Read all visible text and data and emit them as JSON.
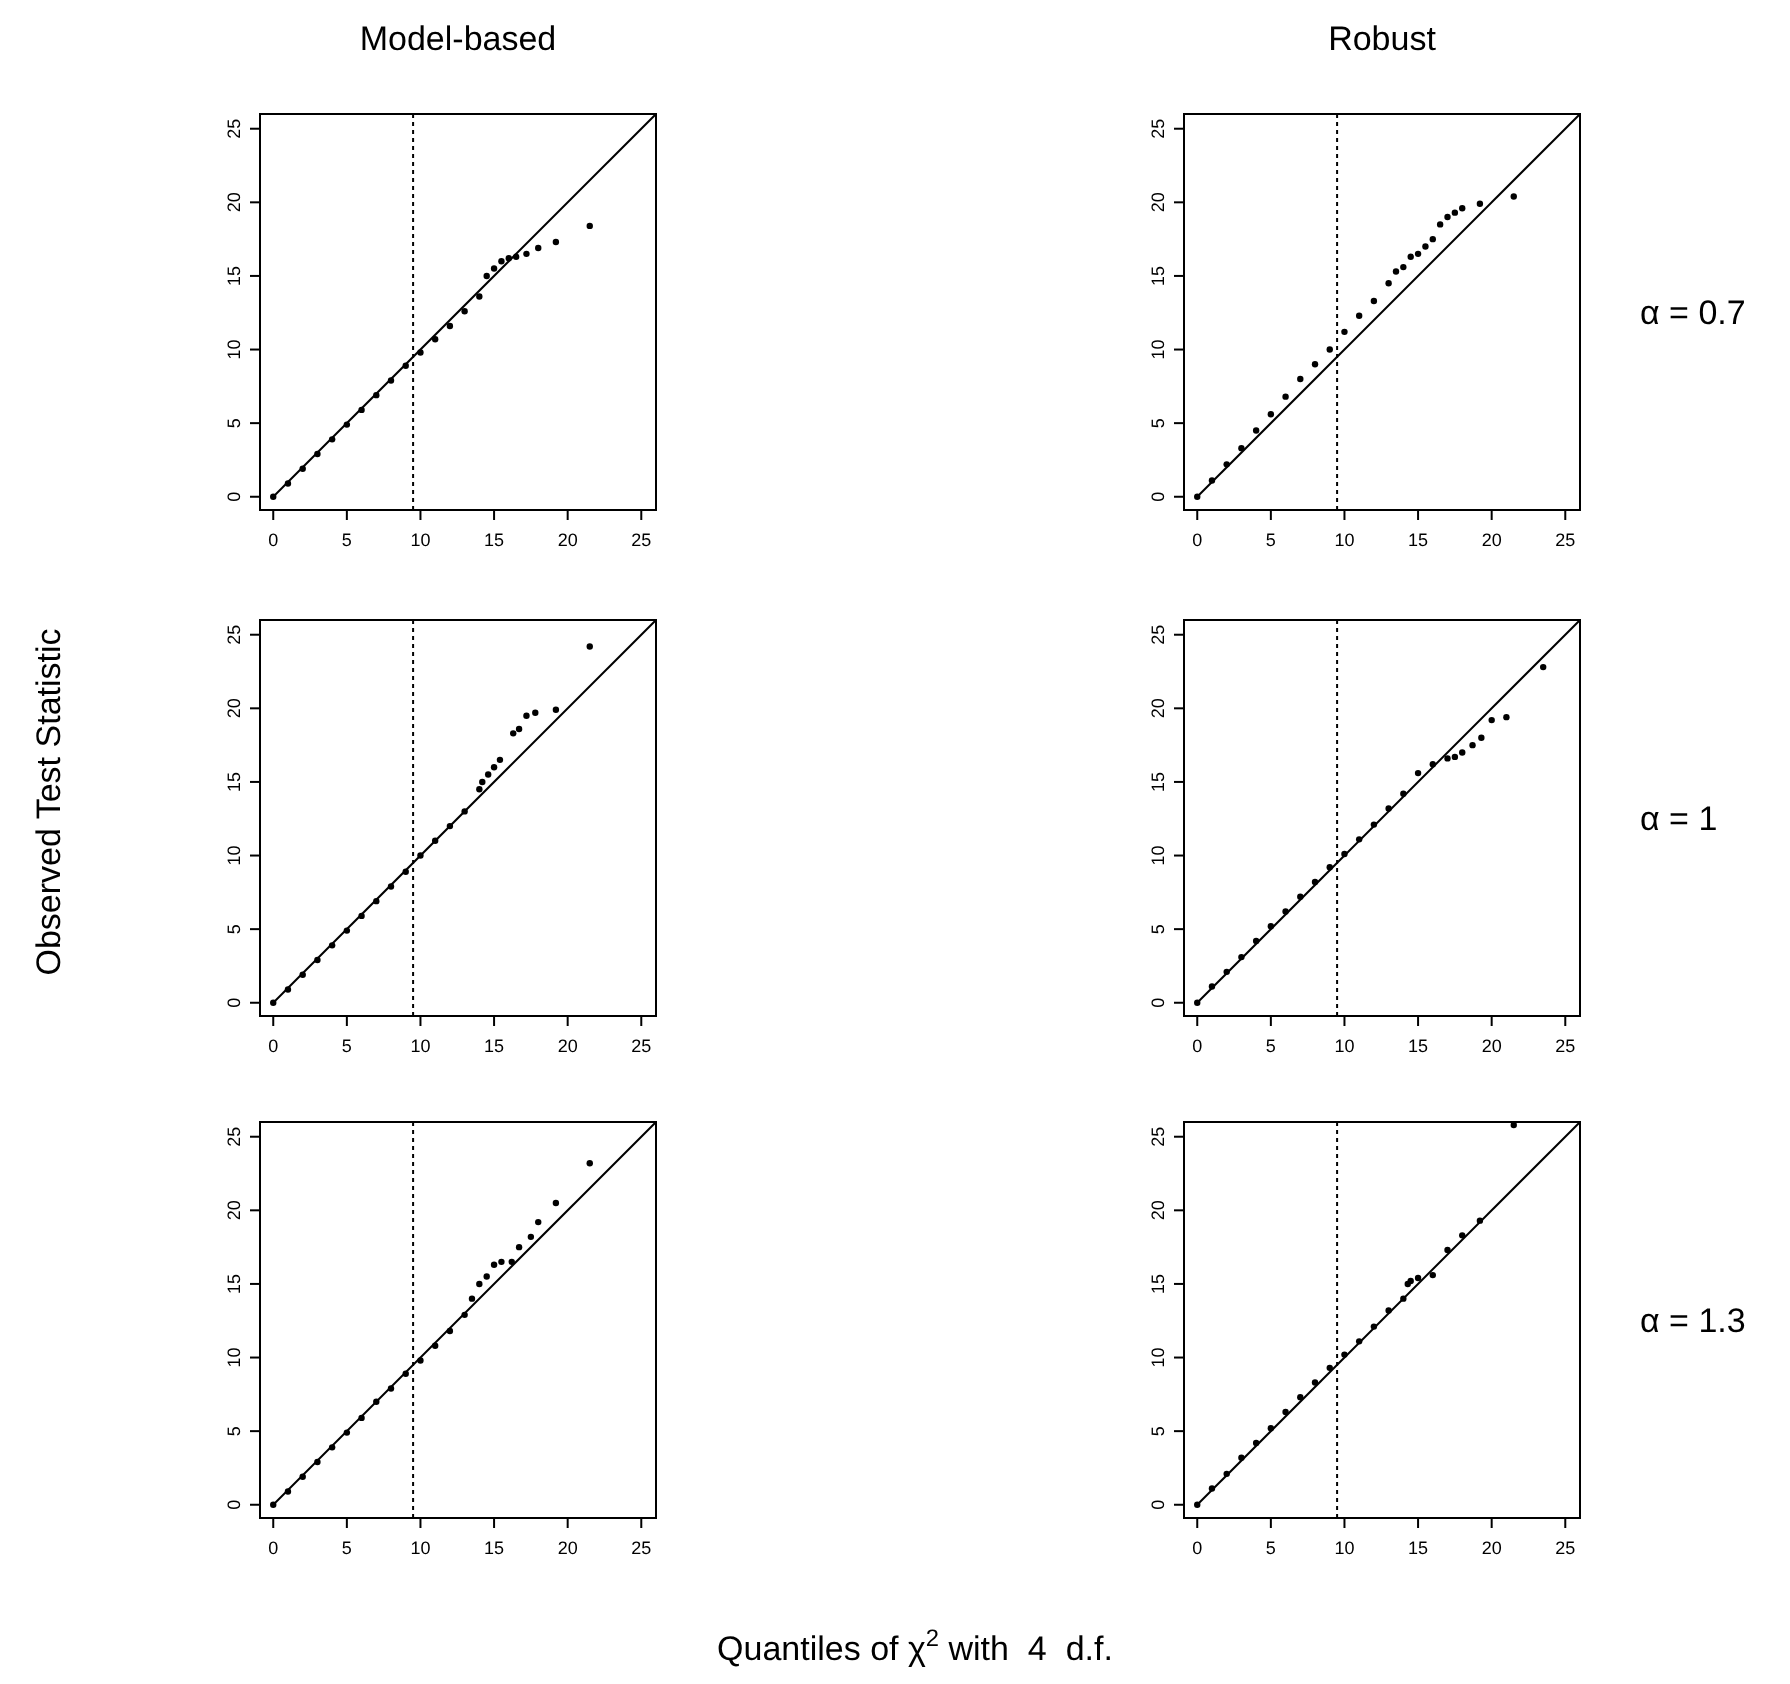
{
  "chart_data": [
    {
      "type": "scatter",
      "title": "Model-based",
      "xlim": [
        -0.9,
        26
      ],
      "ylim": [
        -0.9,
        26
      ],
      "xticks": [
        0,
        5,
        10,
        15,
        20,
        25
      ],
      "yticks": [
        0,
        5,
        10,
        15,
        20,
        25
      ],
      "series": [
        {
          "marker": "circle",
          "color": "#000000",
          "x": [
            0,
            1,
            2,
            3,
            4,
            5,
            6,
            7,
            8,
            9,
            10,
            11,
            12,
            13,
            14,
            14.5,
            15,
            15.5,
            16,
            16.5,
            17.2,
            18,
            19.2,
            21.5
          ],
          "values": [
            0,
            0.9,
            1.9,
            2.9,
            3.9,
            4.9,
            5.9,
            6.9,
            7.9,
            8.9,
            9.8,
            10.7,
            11.6,
            12.6,
            13.6,
            15,
            15.5,
            16,
            16.2,
            16.3,
            16.5,
            16.9,
            17.3,
            18.4
          ]
        },
        {
          "type": "line",
          "color": "#000000",
          "line_style": "solid",
          "x": [
            0,
            26
          ],
          "values": [
            0,
            26
          ]
        }
      ],
      "ref_lines": [
        {
          "axis": "x",
          "value": 9.5,
          "line_style": "dotted",
          "color": "#000000"
        }
      ]
    },
    {
      "type": "scatter",
      "title": "Robust",
      "annotations": [
        "α = 0.7"
      ],
      "xlim": [
        -0.9,
        26
      ],
      "ylim": [
        -0.9,
        26
      ],
      "xticks": [
        0,
        5,
        10,
        15,
        20,
        25
      ],
      "yticks": [
        0,
        5,
        10,
        15,
        20,
        25
      ],
      "series": [
        {
          "marker": "circle",
          "color": "#000000",
          "x": [
            0,
            1,
            2,
            3,
            4,
            5,
            6,
            7,
            8,
            9,
            10,
            11,
            12,
            13,
            13.5,
            14,
            14.5,
            15,
            15.5,
            16,
            16.5,
            17,
            17.5,
            18,
            19.2,
            21.5
          ],
          "values": [
            0,
            1.1,
            2.2,
            3.3,
            4.5,
            5.6,
            6.8,
            8,
            9,
            10,
            11.2,
            12.3,
            13.3,
            14.5,
            15.3,
            15.6,
            16.3,
            16.5,
            17,
            17.5,
            18.5,
            19,
            19.3,
            19.6,
            19.9,
            20.4
          ]
        },
        {
          "type": "line",
          "color": "#000000",
          "line_style": "solid",
          "x": [
            0,
            26
          ],
          "values": [
            0,
            26
          ]
        }
      ],
      "ref_lines": [
        {
          "axis": "x",
          "value": 9.5,
          "line_style": "dotted",
          "color": "#000000"
        }
      ]
    },
    {
      "type": "scatter",
      "ylabel": "Observed Test Statistic",
      "xlim": [
        -0.9,
        26
      ],
      "ylim": [
        -0.9,
        26
      ],
      "xticks": [
        0,
        5,
        10,
        15,
        20,
        25
      ],
      "yticks": [
        0,
        5,
        10,
        15,
        20,
        25
      ],
      "series": [
        {
          "marker": "circle",
          "color": "#000000",
          "x": [
            0,
            1,
            2,
            3,
            4,
            5,
            6,
            7,
            8,
            9,
            10,
            11,
            12,
            13,
            14,
            14.2,
            14.6,
            15,
            15.4,
            16.3,
            16.7,
            17.2,
            17.8,
            19.2,
            21.5
          ],
          "values": [
            0,
            0.9,
            1.9,
            2.9,
            3.9,
            4.9,
            5.9,
            6.9,
            7.9,
            8.9,
            10,
            11,
            12,
            13,
            14.5,
            15,
            15.5,
            16,
            16.5,
            18.3,
            18.6,
            19.5,
            19.7,
            19.9,
            24.2
          ]
        },
        {
          "type": "line",
          "color": "#000000",
          "line_style": "solid",
          "x": [
            0,
            26
          ],
          "values": [
            0,
            26
          ]
        }
      ],
      "ref_lines": [
        {
          "axis": "x",
          "value": 9.5,
          "line_style": "dotted",
          "color": "#000000"
        }
      ]
    },
    {
      "type": "scatter",
      "annotations": [
        "α = 1"
      ],
      "xlim": [
        -0.9,
        26
      ],
      "ylim": [
        -0.9,
        26
      ],
      "xticks": [
        0,
        5,
        10,
        15,
        20,
        25
      ],
      "yticks": [
        0,
        5,
        10,
        15,
        20,
        25
      ],
      "series": [
        {
          "marker": "circle",
          "color": "#000000",
          "x": [
            0,
            1,
            2,
            3,
            4,
            5,
            6,
            7,
            8,
            9,
            10,
            11,
            12,
            13,
            14,
            15,
            16,
            17,
            17.5,
            18,
            18.7,
            19.3,
            20,
            21,
            23.5
          ],
          "values": [
            0,
            1.1,
            2.1,
            3.1,
            4.2,
            5.2,
            6.2,
            7.2,
            8.2,
            9.2,
            10.1,
            11.1,
            12.1,
            13.2,
            14.2,
            15.6,
            16.2,
            16.6,
            16.7,
            17,
            17.5,
            18,
            19.2,
            19.4,
            22.8
          ]
        },
        {
          "type": "line",
          "color": "#000000",
          "line_style": "solid",
          "x": [
            0,
            26
          ],
          "values": [
            0,
            26
          ]
        }
      ],
      "ref_lines": [
        {
          "axis": "x",
          "value": 9.5,
          "line_style": "dotted",
          "color": "#000000"
        }
      ]
    },
    {
      "type": "scatter",
      "xlabel": "Quantiles of χ$^{2}$ with  4  d.f.",
      "xlim": [
        -0.9,
        26
      ],
      "ylim": [
        -0.9,
        26
      ],
      "xticks": [
        0,
        5,
        10,
        15,
        20,
        25
      ],
      "yticks": [
        0,
        5,
        10,
        15,
        20,
        25
      ],
      "series": [
        {
          "marker": "circle",
          "color": "#000000",
          "x": [
            0,
            1,
            2,
            3,
            4,
            5,
            6,
            7,
            8,
            9,
            10,
            11,
            12,
            13,
            13.5,
            14,
            14.5,
            15,
            15.5,
            16.2,
            16.7,
            17.5,
            18,
            19.2,
            21.5
          ],
          "values": [
            0,
            0.9,
            1.9,
            2.9,
            3.9,
            4.9,
            5.9,
            7,
            7.9,
            8.9,
            9.8,
            10.8,
            11.8,
            12.9,
            14,
            15,
            15.5,
            16.3,
            16.5,
            16.5,
            17.5,
            18.2,
            19.2,
            20.5,
            23.2
          ]
        },
        {
          "type": "line",
          "color": "#000000",
          "line_style": "solid",
          "x": [
            0,
            26
          ],
          "values": [
            0,
            26
          ]
        }
      ],
      "ref_lines": [
        {
          "axis": "x",
          "value": 9.5,
          "line_style": "dotted",
          "color": "#000000"
        }
      ]
    },
    {
      "type": "scatter",
      "annotations": [
        "α = 1.3"
      ],
      "xlim": [
        -0.9,
        26
      ],
      "ylim": [
        -0.9,
        26
      ],
      "xticks": [
        0,
        5,
        10,
        15,
        20,
        25
      ],
      "yticks": [
        0,
        5,
        10,
        15,
        20,
        25
      ],
      "series": [
        {
          "marker": "circle",
          "color": "#000000",
          "x": [
            0,
            1,
            2,
            3,
            4,
            5,
            6,
            7,
            8,
            9,
            10,
            11,
            12,
            13,
            14,
            14.3,
            14.5,
            15,
            16,
            17,
            18,
            19.2,
            21.5
          ],
          "values": [
            0,
            1.1,
            2.1,
            3.2,
            4.2,
            5.2,
            6.3,
            7.3,
            8.3,
            9.3,
            10.2,
            11.1,
            12.1,
            13.2,
            14,
            15,
            15.2,
            15.4,
            15.6,
            17.3,
            18.3,
            19.3,
            25.8
          ]
        },
        {
          "type": "line",
          "color": "#000000",
          "line_style": "solid",
          "x": [
            0,
            26
          ],
          "values": [
            0,
            26
          ]
        }
      ],
      "ref_lines": [
        {
          "axis": "x",
          "value": 9.5,
          "line_style": "dotted",
          "color": "#000000"
        }
      ]
    }
  ]
}
